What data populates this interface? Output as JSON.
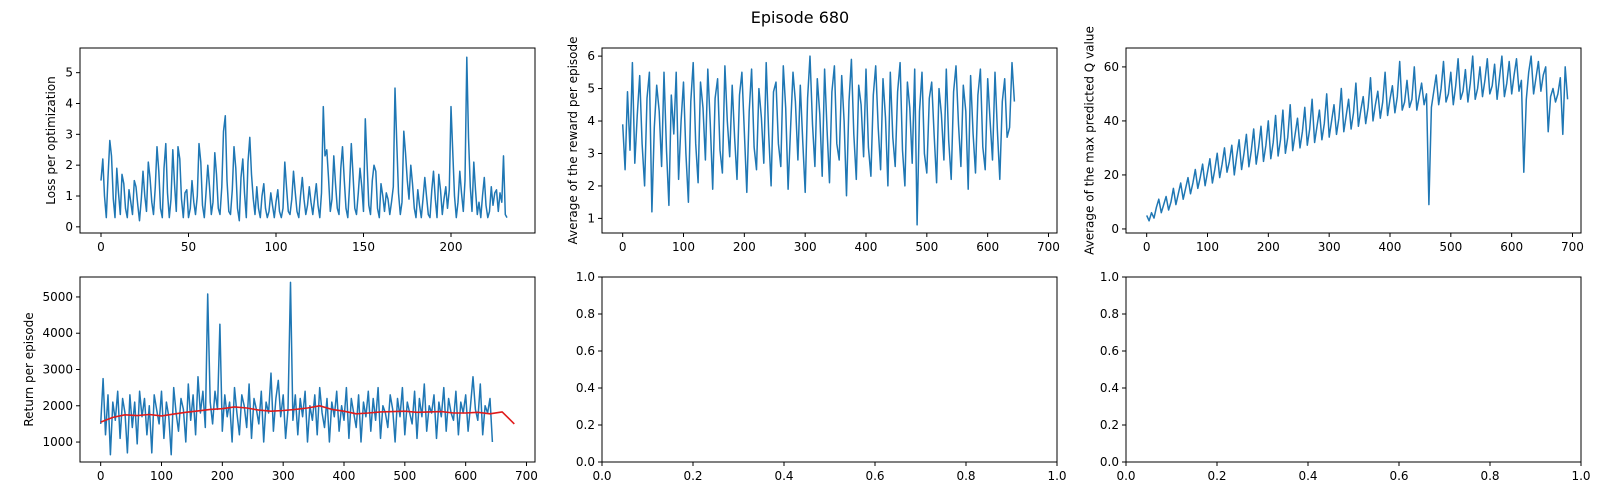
{
  "figure": {
    "suptitle": "Episode 680"
  },
  "chart_data": [
    {
      "type": "line",
      "ylabel": "Loss per optimization",
      "xlim": [
        -12,
        248
      ],
      "ylim": [
        -0.2,
        5.8
      ],
      "xticks": [
        0,
        50,
        100,
        150,
        200
      ],
      "yticks": [
        0,
        1,
        2,
        3,
        4,
        5
      ],
      "series": [
        {
          "color": "#1f77b4",
          "x_start": 0,
          "x_step": 1,
          "values": [
            1.5,
            2.2,
            1.0,
            0.3,
            1.6,
            2.8,
            2.3,
            0.9,
            0.3,
            1.9,
            1.1,
            0.4,
            1.7,
            1.4,
            0.6,
            0.3,
            1.2,
            0.8,
            0.4,
            1.5,
            1.3,
            0.7,
            0.2,
            0.9,
            1.8,
            1.0,
            0.5,
            2.1,
            1.6,
            0.8,
            0.4,
            1.3,
            2.6,
            1.8,
            0.6,
            0.3,
            1.9,
            2.7,
            1.1,
            0.3,
            0.9,
            2.5,
            1.4,
            0.5,
            2.6,
            2.2,
            0.9,
            0.3,
            1.1,
            1.2,
            0.3,
            0.6,
            1.5,
            0.8,
            0.4,
            1.0,
            2.7,
            2.1,
            0.7,
            0.3,
            1.1,
            2.0,
            1.3,
            0.4,
            0.8,
            2.4,
            1.7,
            0.6,
            0.4,
            1.3,
            3.1,
            3.6,
            1.5,
            0.5,
            0.4,
            1.2,
            2.6,
            1.9,
            0.6,
            0.2,
            1.6,
            2.2,
            1.1,
            0.3,
            2.1,
            2.9,
            1.7,
            0.9,
            0.4,
            1.3,
            0.6,
            0.3,
            1.0,
            1.4,
            0.6,
            0.3,
            0.5,
            1.1,
            0.7,
            0.3,
            0.8,
            1.2,
            0.5,
            0.3,
            0.6,
            2.1,
            1.3,
            0.5,
            0.4,
            0.9,
            1.8,
            1.1,
            0.5,
            0.3,
            1.0,
            1.6,
            0.9,
            0.4,
            0.7,
            1.3,
            0.8,
            0.4,
            0.9,
            1.4,
            0.7,
            0.3,
            1.1,
            3.9,
            2.3,
            2.5,
            1.6,
            0.5,
            0.9,
            2.3,
            1.4,
            0.6,
            0.4,
            1.9,
            2.6,
            1.5,
            0.6,
            0.3,
            1.3,
            2.7,
            1.7,
            0.6,
            0.4,
            1.1,
            1.9,
            1.3,
            0.5,
            3.5,
            2.1,
            0.7,
            0.4,
            1.5,
            2.0,
            1.8,
            0.6,
            0.3,
            1.4,
            1.0,
            0.5,
            1.1,
            0.9,
            0.4,
            0.8,
            1.3,
            4.5,
            2.7,
            1.1,
            0.4,
            0.8,
            3.1,
            2.4,
            1.5,
            0.9,
            2.0,
            1.4,
            0.6,
            0.3,
            1.2,
            0.7,
            0.3,
            0.9,
            1.6,
            1.0,
            0.4,
            0.3,
            1.2,
            1.8,
            0.9,
            0.3,
            1.7,
            1.2,
            0.4,
            0.9,
            1.3,
            0.6,
            1.2,
            3.9,
            2.4,
            1.0,
            0.3,
            0.8,
            1.8,
            1.1,
            0.5,
            1.5,
            5.5,
            2.9,
            1.3,
            0.5,
            2.1,
            1.2,
            0.4,
            0.8,
            0.3,
            1.0,
            1.6,
            0.7,
            0.3,
            0.5,
            1.3,
            0.7,
            1.1,
            1.2,
            0.5,
            1.1,
            0.8,
            2.3,
            0.4,
            0.3
          ]
        }
      ]
    },
    {
      "type": "line",
      "ylabel": "Average of the reward per episode",
      "xlim": [
        -34,
        714
      ],
      "ylim": [
        0.55,
        6.25
      ],
      "xticks": [
        0,
        100,
        200,
        300,
        400,
        500,
        600,
        700
      ],
      "yticks": [
        1,
        2,
        3,
        4,
        5,
        6
      ],
      "series": [
        {
          "color": "#1f77b4",
          "x_start": 0,
          "x_step": 4,
          "values": [
            3.9,
            2.5,
            4.9,
            3.1,
            5.8,
            2.7,
            4.2,
            5.4,
            3.3,
            2.0,
            4.7,
            5.5,
            1.2,
            3.8,
            5.1,
            4.3,
            2.6,
            5.5,
            3.1,
            1.4,
            4.8,
            3.6,
            5.5,
            2.2,
            4.0,
            5.2,
            3.0,
            1.5,
            4.6,
            5.8,
            3.3,
            2.1,
            5.2,
            4.4,
            2.8,
            5.6,
            3.9,
            1.9,
            4.7,
            5.3,
            3.1,
            2.4,
            5.7,
            4.0,
            2.9,
            5.1,
            3.5,
            2.2,
            4.8,
            5.5,
            3.7,
            1.8,
            4.3,
            5.6,
            3.2,
            2.5,
            5.0,
            4.1,
            2.7,
            5.8,
            3.6,
            2.0,
            4.9,
            5.2,
            3.3,
            2.6,
            5.7,
            4.4,
            1.9,
            3.8,
            5.5,
            4.6,
            2.8,
            5.1,
            3.4,
            1.8,
            4.7,
            6.0,
            3.9,
            2.6,
            5.3,
            4.2,
            2.3,
            5.6,
            3.7,
            2.1,
            4.9,
            5.7,
            3.3,
            2.8,
            5.4,
            4.0,
            1.7,
            4.6,
            5.9,
            3.6,
            2.2,
            5.1,
            4.5,
            2.9,
            5.6,
            3.2,
            2.3,
            4.8,
            5.7,
            3.8,
            2.5,
            5.3,
            4.1,
            2.0,
            5.5,
            3.5,
            2.6,
            4.9,
            5.8,
            3.1,
            2.0,
            5.2,
            4.4,
            2.7,
            5.6,
            0.8,
            4.3,
            5.5,
            3.0,
            2.4,
            4.7,
            5.2,
            3.6,
            2.1,
            5.0,
            4.2,
            2.8,
            5.6,
            3.4,
            2.2,
            4.9,
            5.7,
            3.9,
            2.6,
            5.1,
            4.3,
            1.9,
            5.4,
            3.6,
            2.4,
            4.8,
            5.6,
            3.2,
            2.5,
            5.3,
            4.0,
            2.8,
            5.5,
            3.7,
            2.2,
            4.6,
            5.3,
            3.5,
            3.8,
            5.8,
            4.6
          ]
        }
      ]
    },
    {
      "type": "line",
      "ylabel": "Average of the max predicted Q value",
      "xlim": [
        -34,
        714
      ],
      "ylim": [
        -1.5,
        67
      ],
      "xticks": [
        0,
        100,
        200,
        300,
        400,
        500,
        600,
        700
      ],
      "yticks": [
        0,
        20,
        40,
        60
      ],
      "series": [
        {
          "color": "#1f77b4",
          "x_start": 0,
          "x_step": 4,
          "values": [
            5,
            3,
            6,
            4,
            8,
            11,
            6,
            9,
            12,
            7,
            10,
            15,
            9,
            13,
            17,
            11,
            15,
            19,
            13,
            17,
            22,
            15,
            19,
            24,
            16,
            21,
            26,
            17,
            22,
            28,
            19,
            24,
            30,
            21,
            25,
            31,
            20,
            27,
            33,
            22,
            28,
            35,
            23,
            29,
            37,
            24,
            30,
            38,
            25,
            31,
            40,
            26,
            32,
            42,
            27,
            33,
            44,
            28,
            34,
            46,
            29,
            35,
            41,
            30,
            36,
            45,
            31,
            37,
            48,
            32,
            38,
            44,
            33,
            39,
            50,
            34,
            40,
            46,
            35,
            41,
            52,
            36,
            42,
            48,
            37,
            43,
            54,
            38,
            44,
            49,
            39,
            45,
            56,
            40,
            46,
            51,
            41,
            47,
            58,
            42,
            48,
            53,
            43,
            49,
            62,
            44,
            47,
            55,
            45,
            48,
            60,
            44,
            49,
            54,
            46,
            50,
            9,
            45,
            51,
            57,
            46,
            52,
            62,
            47,
            50,
            58,
            46,
            53,
            63,
            48,
            51,
            59,
            47,
            54,
            64,
            48,
            52,
            60,
            49,
            55,
            63,
            50,
            53,
            61,
            48,
            56,
            64,
            49,
            54,
            62,
            50,
            57,
            63,
            51,
            55,
            21,
            48,
            58,
            64,
            50,
            56,
            62,
            51,
            57,
            60,
            36,
            49,
            52,
            47,
            50,
            56,
            35,
            60,
            48
          ]
        }
      ]
    },
    {
      "type": "line",
      "ylabel": "Return per episode",
      "xlim": [
        -34,
        714
      ],
      "ylim": [
        450,
        5550
      ],
      "xticks": [
        0,
        100,
        200,
        300,
        400,
        500,
        600,
        700
      ],
      "yticks": [
        1000,
        2000,
        3000,
        4000,
        5000
      ],
      "series": [
        {
          "color": "#1f77b4",
          "x_start": 0,
          "x_step": 4,
          "values": [
            1500,
            2750,
            1200,
            2300,
            650,
            2100,
            1600,
            2400,
            1100,
            2200,
            1800,
            700,
            2300,
            1400,
            2100,
            950,
            2400,
            1700,
            2200,
            1200,
            2000,
            700,
            2300,
            1900,
            1500,
            2400,
            1100,
            2100,
            1700,
            650,
            2500,
            1800,
            1300,
            2200,
            1900,
            1000,
            2600,
            1600,
            2300,
            1200,
            2800,
            1800,
            2400,
            1400,
            5080,
            2100,
            1500,
            2400,
            1900,
            4250,
            1300,
            2300,
            1700,
            2100,
            1000,
            2500,
            1800,
            1200,
            2300,
            2000,
            1400,
            2600,
            1100,
            2200,
            1900,
            1500,
            2400,
            1000,
            2100,
            1800,
            2900,
            1300,
            2200,
            2700,
            1700,
            2300,
            1100,
            1900,
            5400,
            1600,
            2300,
            1200,
            2200,
            1700,
            2400,
            1000,
            2000,
            1600,
            2300,
            1200,
            2500,
            1800,
            1400,
            2200,
            1000,
            2100,
            1700,
            2400,
            1300,
            2000,
            1600,
            2500,
            1100,
            2200,
            1800,
            1400,
            2300,
            1000,
            2100,
            1700,
            2400,
            1300,
            2200,
            1600,
            2500,
            1100,
            2000,
            1800,
            1400,
            2300,
            1900,
            1000,
            2200,
            1700,
            2500,
            1200,
            2100,
            1800,
            1500,
            2400,
            1100,
            2200,
            1700,
            2600,
            1300,
            2000,
            1800,
            2300,
            1100,
            2100,
            1700,
            2500,
            1300,
            2200,
            1800,
            1600,
            2400,
            1200,
            2100,
            1800,
            2300,
            1300,
            2000,
            2800,
            1900,
            1600,
            2600,
            1200,
            2000,
            1800,
            2200,
            1000
          ]
        },
        {
          "color": "#e01b1b",
          "x_start": 0,
          "x_step": 20,
          "values": [
            1550,
            1680,
            1750,
            1730,
            1760,
            1720,
            1770,
            1820,
            1860,
            1900,
            1920,
            1970,
            1940,
            1880,
            1850,
            1870,
            1900,
            1940,
            2000,
            1900,
            1850,
            1780,
            1800,
            1830,
            1840,
            1850,
            1820,
            1830,
            1840,
            1800,
            1800,
            1820,
            1780,
            1830,
            1500
          ]
        }
      ]
    },
    {
      "type": "line",
      "xlim": [
        0,
        1
      ],
      "ylim": [
        0,
        1
      ],
      "xticks": [
        0.0,
        0.2,
        0.4,
        0.6,
        0.8,
        1.0
      ],
      "yticks": [
        0.0,
        0.2,
        0.4,
        0.6,
        0.8,
        1.0
      ],
      "series": []
    },
    {
      "type": "line",
      "xlim": [
        0,
        1
      ],
      "ylim": [
        0,
        1
      ],
      "xticks": [
        0.0,
        0.2,
        0.4,
        0.6,
        0.8,
        1.0
      ],
      "yticks": [
        0.0,
        0.2,
        0.4,
        0.6,
        0.8,
        1.0
      ],
      "series": []
    }
  ]
}
